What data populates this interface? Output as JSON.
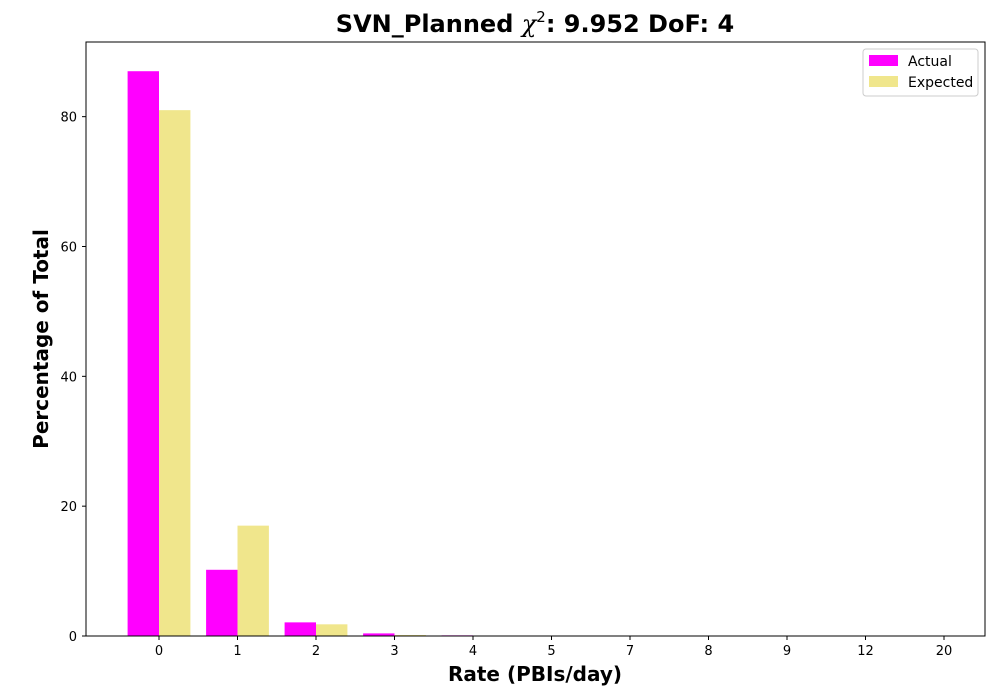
{
  "chart_data": {
    "type": "bar",
    "title_main": "SVN_Planned ",
    "title_chi": "χ",
    "title_sup": "2",
    "title_rest": ": 9.952 DoF: 4",
    "xlabel": "Rate (PBIs/day)",
    "ylabel": "Percentage of Total",
    "categories": [
      "0",
      "1",
      "2",
      "3",
      "4",
      "5",
      "7",
      "8",
      "9",
      "12",
      "20"
    ],
    "series": [
      {
        "name": "Actual",
        "color": "#ff00ff",
        "values": [
          87.0,
          10.2,
          2.1,
          0.4,
          0.1,
          0.0,
          0.0,
          0.0,
          0.0,
          0.0,
          0.0
        ]
      },
      {
        "name": "Expected",
        "color": "#f0e68c",
        "values": [
          81.0,
          17.0,
          1.8,
          0.15,
          0.02,
          0.0,
          0.0,
          0.0,
          0.0,
          0.0,
          0.0
        ]
      }
    ],
    "ylim": [
      0,
      91.5
    ],
    "yticks": [
      0,
      20,
      40,
      60,
      80
    ],
    "grid": false,
    "legend_position": "top-right"
  }
}
